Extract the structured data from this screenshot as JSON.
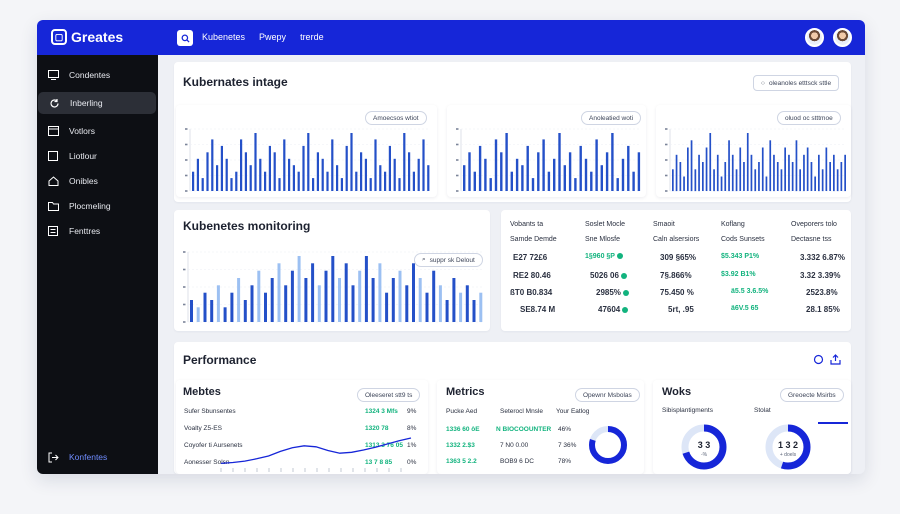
{
  "app": {
    "logo_label": "Greates",
    "top_nav": [
      "Kubenetes",
      "Pwepy",
      "trerde"
    ]
  },
  "sidebar": {
    "items": [
      {
        "label": "Condentes",
        "icon": "monitor-icon"
      },
      {
        "label": "Inberling",
        "icon": "refresh-icon"
      },
      {
        "label": "Votlors",
        "icon": "window-icon"
      },
      {
        "label": "Liotlour",
        "icon": "box-icon"
      },
      {
        "label": "Onibles",
        "icon": "home-icon"
      },
      {
        "label": "Plocmeling",
        "icon": "folder-icon"
      },
      {
        "label": "Fenttres",
        "icon": "list-icon"
      }
    ],
    "footer_label": "Konfentes"
  },
  "top_section": {
    "title": "Kubernates intage",
    "filter_label": "oleanoles etttsck sttle",
    "charts": [
      {
        "pill": "Amoecsos wtiot",
        "values": [
          3,
          5,
          2,
          6,
          8,
          4,
          7,
          5,
          2,
          3,
          8,
          6,
          4,
          9,
          5,
          3,
          7,
          6,
          2,
          8,
          5,
          4,
          3,
          7,
          9,
          2,
          6,
          5,
          3,
          8,
          4,
          2,
          7,
          9,
          3,
          6,
          5,
          2,
          8,
          4,
          3,
          7,
          5,
          2,
          9,
          6,
          3,
          5,
          8,
          4
        ]
      },
      {
        "pill": "Anoleatied woti",
        "values": [
          4,
          6,
          3,
          7,
          5,
          2,
          8,
          6,
          9,
          3,
          5,
          4,
          7,
          2,
          6,
          8,
          3,
          5,
          9,
          4,
          6,
          2,
          7,
          5,
          3,
          8,
          4,
          6,
          9,
          2,
          5,
          7,
          3,
          6
        ]
      },
      {
        "pill": "oluod oc stttmoe",
        "values": [
          3,
          5,
          4,
          2,
          6,
          7,
          3,
          5,
          4,
          6,
          8,
          3,
          5,
          2,
          4,
          7,
          5,
          3,
          6,
          4,
          8,
          5,
          3,
          4,
          6,
          2,
          7,
          5,
          4,
          3,
          6,
          5,
          4,
          7,
          3,
          5,
          6,
          4,
          2,
          5,
          3,
          6,
          4,
          5,
          3,
          4,
          5
        ]
      }
    ]
  },
  "monitoring": {
    "title": "Kubenetes monitoring",
    "pill": "suppr sk Delout",
    "values": [
      3,
      2,
      4,
      3,
      5,
      2,
      4,
      6,
      3,
      5,
      7,
      4,
      6,
      8,
      5,
      7,
      9,
      6,
      8,
      5,
      7,
      9,
      6,
      8,
      5,
      7,
      9,
      6,
      8,
      4,
      6,
      7,
      5,
      8,
      6,
      4,
      7,
      5,
      3,
      6,
      4,
      5,
      3,
      4
    ],
    "table": {
      "headers": [
        "Vobants ta",
        "Soslet Mocle",
        "Smaoit",
        "Koflang",
        "Oveporers tolo"
      ],
      "subheaders": [
        "Samde Demde",
        "Sne Mlosfe",
        "Caln alsersiors",
        "Cods Sunsets",
        "Dectasne tss"
      ],
      "rows": [
        [
          "E27 72£6",
          "1§960 §P",
          "309 §65%",
          "$5.343 P1%",
          "3.332 6.87%"
        ],
        [
          "RE2 80.46",
          "5026 06",
          "7§.866%",
          "$3.92 B1%",
          "3.32 3.39%"
        ],
        [
          "ßT0 B0.834",
          "2985%",
          "75.450 %",
          "ä5.5 3.6.5%",
          "2523.8%"
        ],
        [
          "SE8.74 M",
          "47604",
          "5rt, .95",
          "ä6V.5 65",
          "28.1 85%"
        ]
      ]
    }
  },
  "performance": {
    "title": "Performance",
    "metbes": {
      "title": "Mebtes",
      "pill": "Oleeseret stt9 ts",
      "labels": [
        "Sufer Sbunsentes",
        "Voalty  Z5-ES",
        "Coyofer ti  Aursenets",
        "Aonesser  Solsn"
      ],
      "values": [
        "1324 3 Mfs",
        "1320 78",
        "1313 3 76 05",
        "13 7 8 85"
      ],
      "pcts": [
        "9%",
        "8%",
        "1%",
        "0%"
      ],
      "line": [
        1,
        1.2,
        1.5,
        2,
        2.6,
        3.6,
        4.4,
        4.8,
        4.6,
        3.8,
        3.2,
        3.4,
        3.9,
        4.5,
        5.2,
        5.9,
        6.5
      ]
    },
    "metrics": {
      "title": "Metrics",
      "pill": "Opewnr Msbolas",
      "headers": [
        "Pucke Aed",
        "Seterocl Mnsle",
        "Your Eatlog"
      ],
      "rows": [
        [
          "1336 60 ôE",
          "N BIOCOOUNTER",
          "46%"
        ],
        [
          "1332 2.$3",
          "7 N0 0.00",
          "7 36%"
        ],
        [
          "1363 5 2.2",
          "BOB9 6 DC",
          "78%"
        ]
      ],
      "donut": 0.8
    },
    "works": {
      "title": "Woks",
      "pill": "Greoecte Msirbs",
      "labels": [
        "Sibisplantigments",
        "Stolat"
      ],
      "donuts": [
        {
          "value": "3 3",
          "sub": "-%",
          "fraction": 0.7
        },
        {
          "value": "1 3 2",
          "sub": "+ doels",
          "fraction": 0.55
        }
      ]
    }
  },
  "colors": {
    "accent": "#1626d8",
    "bar": "#2450c8",
    "bar_light": "#9cc0f2",
    "positive": "#12b37e"
  }
}
